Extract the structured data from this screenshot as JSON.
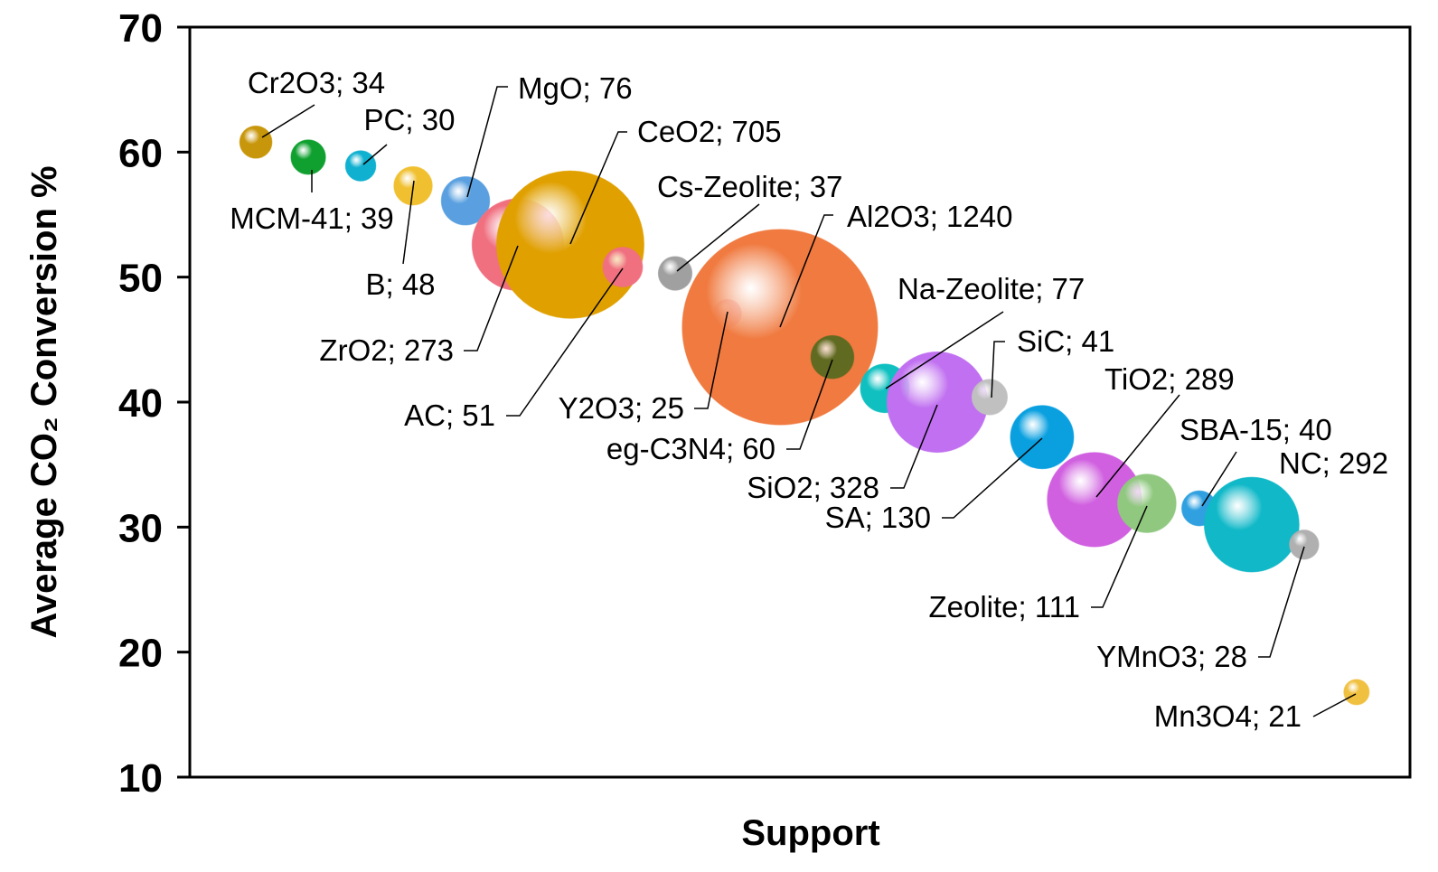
{
  "chart_data": {
    "type": "bubble",
    "x_label": "Support",
    "y_label": "Average CO₂ Conversion %",
    "xlim": [
      -0.26,
      23.02
    ],
    "ylim": [
      10,
      70
    ],
    "yticks": [
      10,
      20,
      30,
      40,
      50,
      60,
      70
    ],
    "grid": false,
    "series": [
      {
        "x": [
          1,
          2,
          3,
          4,
          5,
          6,
          7,
          8,
          9,
          10,
          11,
          12,
          13,
          14,
          15,
          16,
          17,
          18,
          19,
          20,
          21,
          22
        ],
        "values": [
          60.8,
          59.6,
          58.9,
          57.3,
          56.1,
          52.6,
          52.6,
          50.8,
          50.3,
          47.1,
          46.0,
          43.6,
          41.1,
          40.0,
          40.4,
          37.2,
          32.2,
          31.9,
          31.5,
          30.2,
          28.6,
          16.8
        ],
        "sizes": [
          34,
          39,
          30,
          48,
          76,
          273,
          705,
          51,
          37,
          25,
          1240,
          60,
          77,
          328,
          41,
          130,
          289,
          111,
          40,
          292,
          28,
          21
        ],
        "labels": [
          "Cr2O3; 34",
          "MCM-41; 39",
          "PC; 30",
          "B; 48",
          "MgO; 76",
          "ZrO2; 273",
          "CeO2; 705",
          "AC; 51",
          "Cs-Zeolite; 37",
          "Y2O3; 25",
          "Al2O3; 1240",
          "eg-C3N4; 60",
          "Na-Zeolite; 77",
          "SiO2; 328",
          "SiC; 41",
          "SA; 130",
          "TiO2; 289",
          "Zeolite; 111",
          "SBA-15; 40",
          "NC; 292",
          "YMnO3; 28",
          "Mn3O4; 21"
        ],
        "colors": [
          "#c8960a",
          "#10a030",
          "#10b0d0",
          "#f0c030",
          "#5aa0e0",
          "#f07080",
          "#e0a000",
          "#f07080",
          "#a0a0a0",
          "#f07080",
          "#f07a40",
          "#606a20",
          "#10c0c0",
          "#c070f0",
          "#c0c0c0",
          "#0aa0e0",
          "#d060e0",
          "#90c880",
          "#30a0e0",
          "#10b8c8",
          "#b0b0b0",
          "#f0c040"
        ]
      }
    ]
  }
}
